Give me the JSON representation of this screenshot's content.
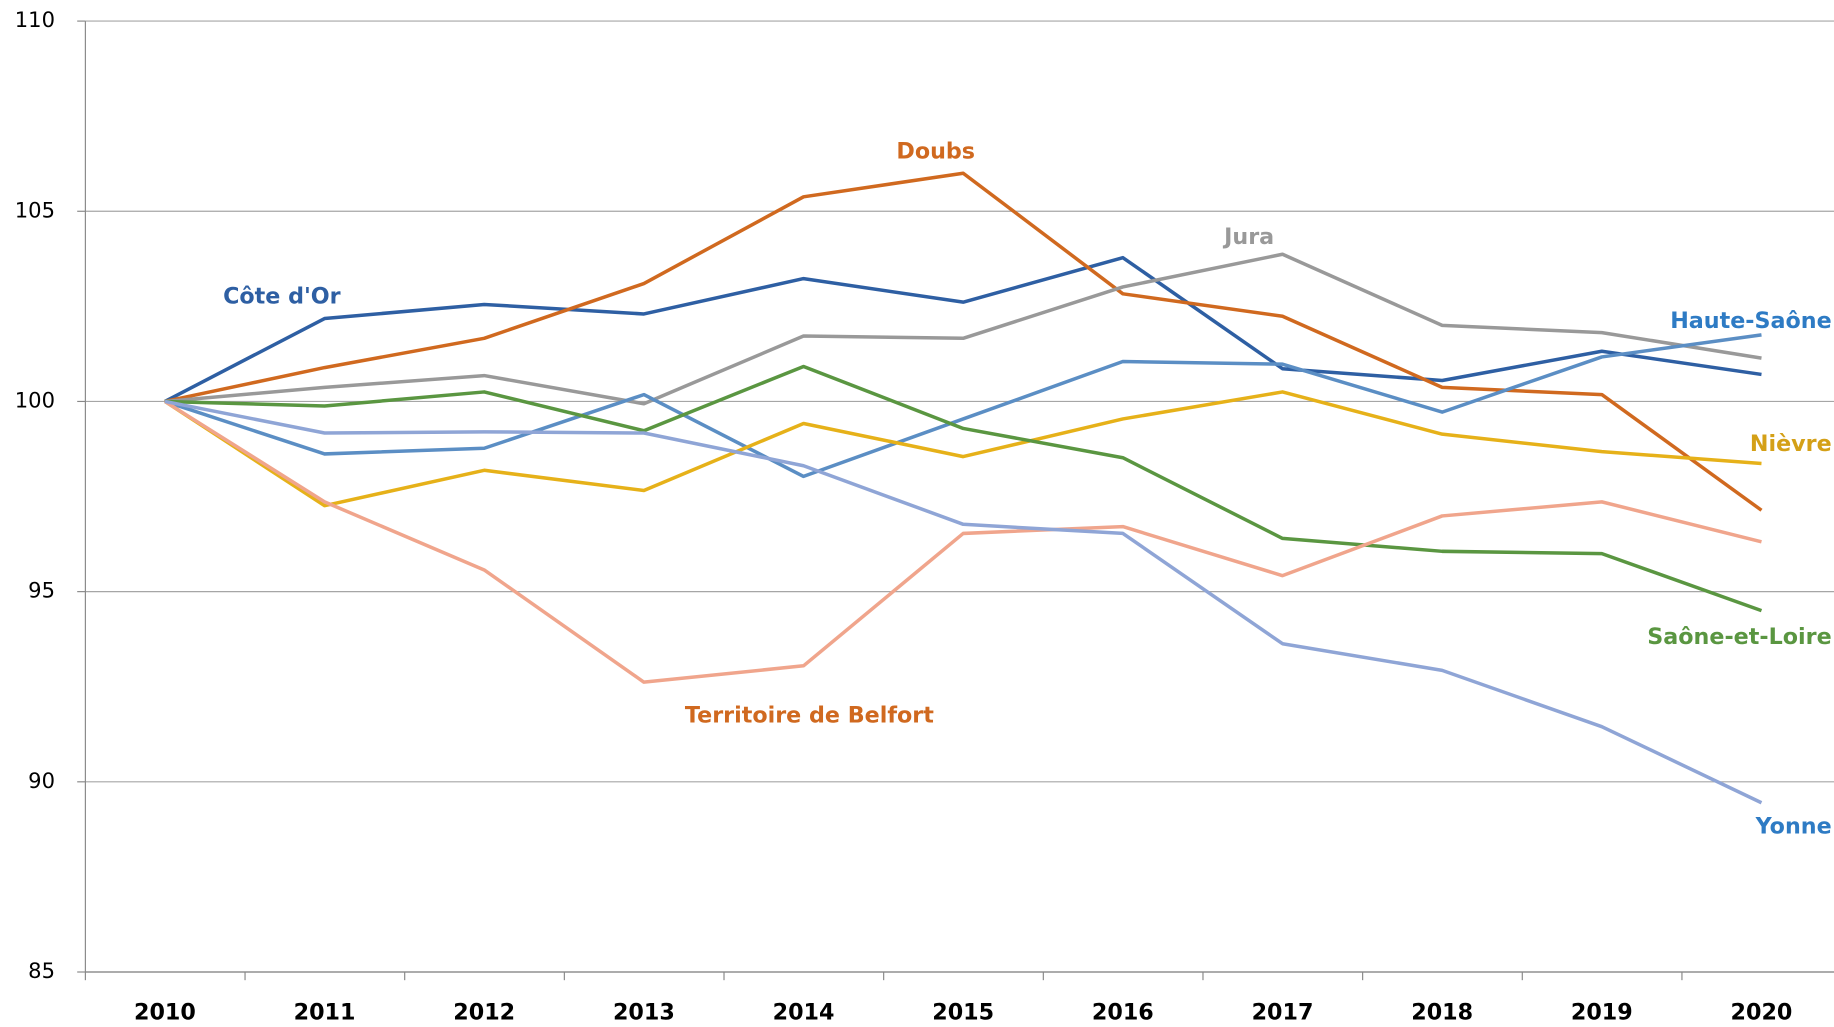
{
  "chart_data": {
    "type": "line",
    "categories": [
      "2010",
      "2011",
      "2012",
      "2013",
      "2014",
      "2015",
      "2016",
      "2017",
      "2018",
      "2019",
      "2020"
    ],
    "ylim": [
      85,
      110
    ],
    "yticks": [
      85,
      90,
      95,
      100,
      105,
      110
    ],
    "grid": true,
    "series": [
      {
        "name": "Côte d'Or",
        "color": "#2e5fa3",
        "label_color": "#2e5fa3",
        "values": [
          100,
          102.18,
          102.55,
          102.3,
          103.23,
          102.61,
          103.78,
          100.86,
          100.55,
          101.32,
          100.71
        ]
      },
      {
        "name": "Doubs",
        "color": "#d0691f",
        "label_color": "#d0691f",
        "values": [
          100,
          100.89,
          101.66,
          103.1,
          105.38,
          106.0,
          102.83,
          102.24,
          100.37,
          100.18,
          97.14
        ]
      },
      {
        "name": "Jura",
        "color": "#999999",
        "label_color": "#999999",
        "values": [
          100,
          100.37,
          100.68,
          99.94,
          101.72,
          101.66,
          103.01,
          103.87,
          102.0,
          101.81,
          101.14
        ]
      },
      {
        "name": "Haute-Saône",
        "color": "#5b8ec4",
        "label_color": "#2e7bc4",
        "values": [
          100,
          98.62,
          98.77,
          100.18,
          98.03,
          99.54,
          101.05,
          100.98,
          99.72,
          101.17,
          101.75
        ]
      },
      {
        "name": "Nièvre",
        "color": "#e6b119",
        "label_color": "#d4a017",
        "values": [
          100,
          97.26,
          98.19,
          97.66,
          99.42,
          98.55,
          99.54,
          100.25,
          99.14,
          98.68,
          98.37
        ]
      },
      {
        "name": "Saône-et-Loire",
        "color": "#5a9641",
        "label_color": "#5a9641",
        "values": [
          100,
          99.88,
          100.25,
          99.23,
          100.92,
          99.29,
          98.52,
          96.4,
          96.06,
          96.0,
          94.5
        ]
      },
      {
        "name": "Territoire de Belfort",
        "color": "#f0a58c",
        "label_color": "#d0691f",
        "values": [
          100,
          97.36,
          95.57,
          92.62,
          93.05,
          96.53,
          96.71,
          95.42,
          96.99,
          97.36,
          96.31
        ]
      },
      {
        "name": "Yonne",
        "color": "#8fa5d6",
        "label_color": "#2e7bc4",
        "values": [
          100,
          99.17,
          99.2,
          99.17,
          98.31,
          96.77,
          96.53,
          93.63,
          92.93,
          91.45,
          89.45
        ]
      }
    ]
  }
}
